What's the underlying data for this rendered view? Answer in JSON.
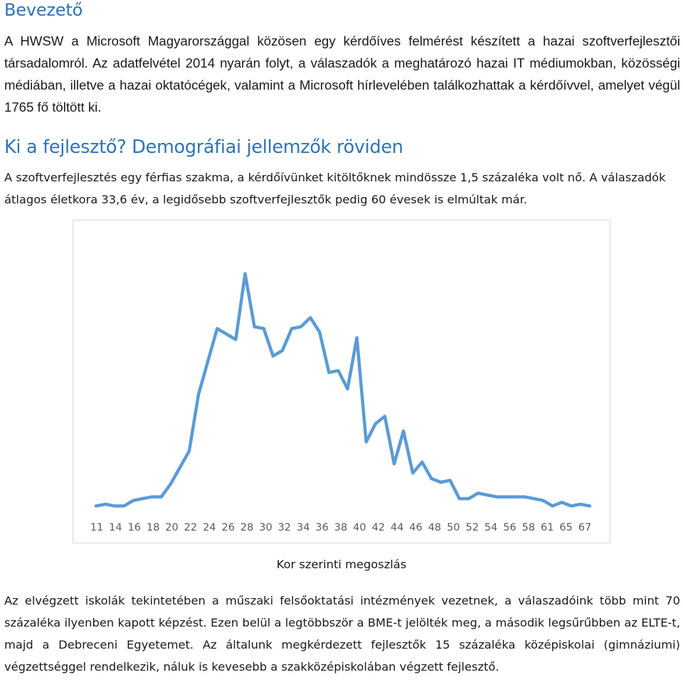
{
  "section1": {
    "title": "Bevezető",
    "paragraph": "A HWSW a Microsoft Magyarországgal közösen egy kérdőíves felmérést készített a hazai szoftverfejlesztői társadalomról. Az adatfelvétel 2014 nyarán folyt, a válaszadók a meghatározó hazai IT médiumokban, közösségi médiában, illetve a hazai oktatócégek, valamint a Microsoft hírlevelében találkozhattak a kérdőívvel, amelyet végül 1765 fő töltött ki."
  },
  "section2": {
    "title": "Ki a fejlesztő? Demográfiai jellemzők röviden",
    "paragraph": "A szoftverfejlesztés egy férfias szakma, a kérdőívünket kitöltőknek mindössze 1,5 százaléka volt nő. A válaszadók átlagos életkora 33,6 év, a legidősebb szoftverfejlesztők pedig 60 évesek is elmúltak már."
  },
  "chart_data": {
    "type": "line",
    "title": "",
    "xlabel": "",
    "ylabel": "",
    "tick_labels": [
      "11",
      "14",
      "16",
      "18",
      "20",
      "22",
      "24",
      "26",
      "28",
      "30",
      "32",
      "34",
      "36",
      "38",
      "40",
      "42",
      "44",
      "46",
      "48",
      "50",
      "52",
      "54",
      "56",
      "58",
      "61",
      "65",
      "67"
    ],
    "values": [
      1,
      2,
      1,
      1,
      4,
      5,
      6,
      6,
      13,
      22,
      31,
      62,
      80,
      98,
      95,
      92,
      128,
      99,
      98,
      83,
      86,
      98,
      99,
      104,
      96,
      74,
      75,
      65,
      93,
      36,
      46,
      50,
      24,
      42,
      19,
      25,
      16,
      14,
      15,
      5,
      5,
      8,
      7,
      6,
      6,
      6,
      6,
      5,
      4,
      1,
      3,
      1,
      2,
      1
    ],
    "ylim": [
      0,
      140
    ],
    "grid": false,
    "legend": "none",
    "color": "#5b9bd5"
  },
  "caption": "Kor szerinti megoszlás",
  "section3": {
    "paragraph": "Az elvégzett iskolák tekintetében a műszaki felsőoktatási intézmények vezetnek, a válaszadóink több mint 70 százaléka ilyenben kapott képzést. Ezen belül a legtöbbször a BME-t jelölték meg, a második legsűrűbben az ELTE-t, majd a Debreceni Egyetemet. Az általunk megkérdezett fejlesztők 15 százaléka középiskolai (gimnáziumi) végzettséggel rendelkezik, náluk is kevesebb a szakközépiskolában végzett fejlesztő."
  }
}
